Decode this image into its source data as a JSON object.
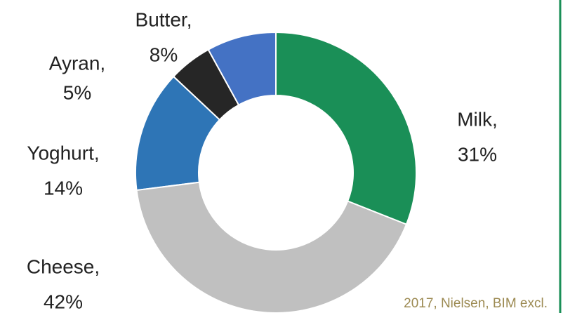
{
  "chart_data": {
    "type": "donut",
    "categories": [
      "Milk,",
      "Cheese,",
      "Yoghurt,",
      "Ayran,",
      "Butter,"
    ],
    "values": [
      31,
      42,
      14,
      5,
      8
    ],
    "value_labels": [
      "31%",
      "42%",
      "14%",
      "5%",
      "8%"
    ],
    "colors": [
      "#1a8f57",
      "#c0c0c0",
      "#2e75b6",
      "#262626",
      "#4472c4"
    ],
    "note": "2017, Nielsen, BIM excl."
  }
}
